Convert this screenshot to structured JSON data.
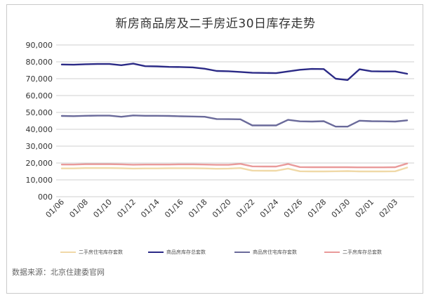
{
  "source_note": "数据来源：北京住建委官网",
  "colors": {
    "new_total": "#2b2a86",
    "new_resi": "#6a6a9a",
    "second_total": "#e99a9a",
    "second_resi": "#f0d9a8",
    "grid": "#cfcfcf",
    "axis_text": "#333333"
  },
  "chart_data": {
    "type": "line",
    "title": "新房商品房及二手房近30日库存走势",
    "xlabel": "",
    "ylabel": "",
    "ylim": [
      0,
      90000
    ],
    "yticks": [
      0,
      10000,
      20000,
      30000,
      40000,
      50000,
      60000,
      70000,
      80000,
      90000
    ],
    "ytick_labels": [
      "000",
      "10,000",
      "20,000",
      "30,000",
      "40,000",
      "50,000",
      "60,000",
      "70,000",
      "80,000",
      "90,000"
    ],
    "grid": true,
    "legend_position": "bottom",
    "x": [
      "01/06",
      "01/07",
      "01/08",
      "01/09",
      "01/10",
      "01/11",
      "01/12",
      "01/13",
      "01/14",
      "01/15",
      "01/16",
      "01/17",
      "01/18",
      "01/19",
      "01/20",
      "01/21",
      "01/22",
      "01/23",
      "01/24",
      "01/25",
      "01/26",
      "01/27",
      "01/28",
      "01/29",
      "01/30",
      "01/31",
      "02/01",
      "02/02",
      "02/03",
      "02/04"
    ],
    "x_tick_labels": [
      "01/06",
      "01/08",
      "01/10",
      "01/12",
      "01/14",
      "01/16",
      "01/18",
      "01/20",
      "01/22",
      "01/24",
      "01/26",
      "01/28",
      "01/30",
      "02/01",
      "02/03"
    ],
    "series": [
      {
        "name": "二手房住宅库存套数",
        "color_key": "second_resi",
        "values": [
          16800,
          16800,
          17000,
          17000,
          17000,
          16900,
          16700,
          16800,
          16800,
          16900,
          16900,
          16900,
          16800,
          16600,
          16700,
          17000,
          15500,
          15400,
          15400,
          16700,
          15100,
          15000,
          15000,
          15100,
          15200,
          15000,
          15000,
          15000,
          15100,
          17300
        ]
      },
      {
        "name": "商品房库存总套数",
        "color_key": "new_total",
        "values": [
          78400,
          78300,
          78600,
          78700,
          78700,
          78000,
          78900,
          77400,
          77300,
          77000,
          76900,
          76700,
          75900,
          74600,
          74400,
          74000,
          73500,
          73400,
          73300,
          74300,
          75300,
          75800,
          75700,
          70000,
          69200,
          75600,
          74400,
          74300,
          74300,
          72900
        ]
      },
      {
        "name": "商品房住宅库存套数",
        "color_key": "new_resi",
        "values": [
          47900,
          47800,
          48000,
          48100,
          48100,
          47400,
          48200,
          48000,
          48000,
          47900,
          47700,
          47600,
          47400,
          46100,
          46000,
          45900,
          42300,
          42300,
          42300,
          45600,
          44700,
          44600,
          44800,
          41600,
          41600,
          45100,
          44800,
          44700,
          44600,
          45300
        ]
      },
      {
        "name": "二手房库存总套数",
        "color_key": "second_total",
        "values": [
          19100,
          19100,
          19300,
          19300,
          19300,
          19200,
          19000,
          19100,
          19100,
          19100,
          19200,
          19200,
          19100,
          18900,
          18900,
          19500,
          18000,
          17900,
          17900,
          19400,
          17600,
          17500,
          17500,
          17500,
          17500,
          17400,
          17400,
          17400,
          17500,
          19700
        ]
      }
    ]
  }
}
